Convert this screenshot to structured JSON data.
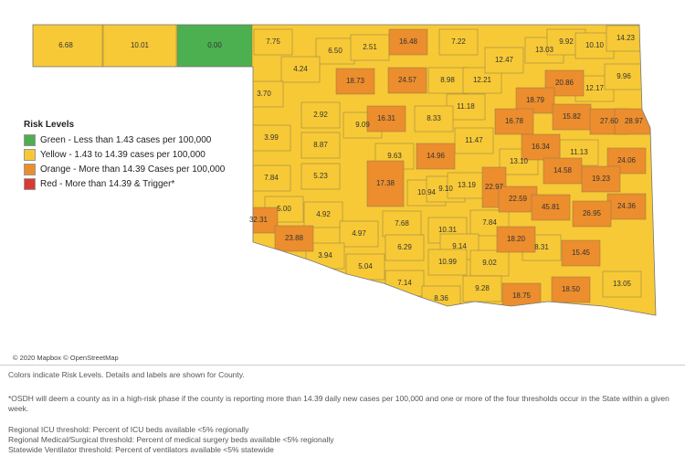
{
  "legend": {
    "title": "Risk Levels",
    "items": [
      {
        "label": "Green - Less than 1.43 cases per 100,000",
        "color": "#4caf50"
      },
      {
        "label": "Yellow - 1.43 to 14.39 cases per 100,000",
        "color": "#f7c936"
      },
      {
        "label": "Orange - More than 14.39 Cases per 100,000",
        "color": "#ec8d2e"
      },
      {
        "label": "Red - More than 14.39 & Trigger*",
        "color": "#d93b34"
      }
    ]
  },
  "counties": [
    {
      "label": "6.68",
      "level": 1
    },
    {
      "label": "10.01",
      "level": 1
    },
    {
      "label": "0.00",
      "level": 0
    },
    {
      "label": "7.75",
      "level": 1
    },
    {
      "label": "6.50",
      "level": 1
    },
    {
      "label": "2.51",
      "level": 1
    },
    {
      "label": "16.48",
      "level": 2
    },
    {
      "label": "7.22",
      "level": 1
    },
    {
      "label": "13.03",
      "level": 1
    },
    {
      "label": "9.92",
      "level": 1
    },
    {
      "label": "10.10",
      "level": 1
    },
    {
      "label": "14.23",
      "level": 1
    },
    {
      "label": "4.24",
      "level": 1
    },
    {
      "label": "18.73",
      "level": 2
    },
    {
      "label": "24.57",
      "level": 2
    },
    {
      "label": "8.98",
      "level": 1
    },
    {
      "label": "12.21",
      "level": 1
    },
    {
      "label": "12.47",
      "level": 1
    },
    {
      "label": "20.86",
      "level": 2
    },
    {
      "label": "12.17",
      "level": 1
    },
    {
      "label": "9.96",
      "level": 1
    },
    {
      "label": "3.70",
      "level": 1
    },
    {
      "label": "18.79",
      "level": 2
    },
    {
      "label": "11.18",
      "level": 1
    },
    {
      "label": "16.31",
      "level": 2
    },
    {
      "label": "8.33",
      "level": 1
    },
    {
      "label": "2.92",
      "level": 1
    },
    {
      "label": "9.09",
      "level": 1
    },
    {
      "label": "16.78",
      "level": 2
    },
    {
      "label": "15.82",
      "level": 2
    },
    {
      "label": "27.60",
      "level": 2
    },
    {
      "label": "28.97",
      "level": 2
    },
    {
      "label": "3.99",
      "level": 1
    },
    {
      "label": "8.87",
      "level": 1
    },
    {
      "label": "11.47",
      "level": 1
    },
    {
      "label": "16.34",
      "level": 2
    },
    {
      "label": "11.13",
      "level": 1
    },
    {
      "label": "9.63",
      "level": 1
    },
    {
      "label": "14.96",
      "level": 2
    },
    {
      "label": "13.10",
      "level": 1
    },
    {
      "label": "24.06",
      "level": 2
    },
    {
      "label": "14.58",
      "level": 2
    },
    {
      "label": "19.23",
      "level": 2
    },
    {
      "label": "7.84",
      "level": 1
    },
    {
      "label": "5.23",
      "level": 1
    },
    {
      "label": "17.38",
      "level": 2
    },
    {
      "label": "10.94",
      "level": 1
    },
    {
      "label": "9.10",
      "level": 1
    },
    {
      "label": "13.19",
      "level": 1
    },
    {
      "label": "22.97",
      "level": 2
    },
    {
      "label": "22.59",
      "level": 2
    },
    {
      "label": "45.81",
      "level": 2
    },
    {
      "label": "24.36",
      "level": 2
    },
    {
      "label": "26.95",
      "level": 2
    },
    {
      "label": "7.68",
      "level": 1
    },
    {
      "label": "5.00",
      "level": 1
    },
    {
      "label": "4.92",
      "level": 1
    },
    {
      "label": "32.31",
      "level": 2
    },
    {
      "label": "23.88",
      "level": 2
    },
    {
      "label": "4.97",
      "level": 1
    },
    {
      "label": "10.31",
      "level": 1
    },
    {
      "label": "7.84",
      "level": 1
    },
    {
      "label": "18.20",
      "level": 2
    },
    {
      "label": "8.31",
      "level": 1
    },
    {
      "label": "9.14",
      "level": 1
    },
    {
      "label": "6.29",
      "level": 1
    },
    {
      "label": "15.45",
      "level": 2
    },
    {
      "label": "3.94",
      "level": 1
    },
    {
      "label": "5.04",
      "level": 1
    },
    {
      "label": "10.99",
      "level": 1
    },
    {
      "label": "9.02",
      "level": 1
    },
    {
      "label": "7.14",
      "level": 1
    },
    {
      "label": "9.28",
      "level": 1
    },
    {
      "label": "18.75",
      "level": 2
    },
    {
      "label": "18.50",
      "level": 2
    },
    {
      "label": "13.05",
      "level": 1
    },
    {
      "label": "8.36",
      "level": 1
    }
  ],
  "attribution": "© 2020 Mapbox © OpenStreetMap",
  "notes": [
    "Colors indicate Risk Levels.  Details and labels are shown for County.",
    "*OSDH will deem a county as in a high-risk phase if the county is reporting more than 14.39 daily new cases per 100,000 and one or more of the four thresholds occur in the State within a given week.",
    "Regional ICU threshold: Percent of ICU beds available <5% regionally",
    "Regional Medical/Surgical threshold: Percent of medical surgery beds available <5% regionally",
    "Statewide Ventilator threshold: Percent of ventilators available <5% statewide"
  ]
}
